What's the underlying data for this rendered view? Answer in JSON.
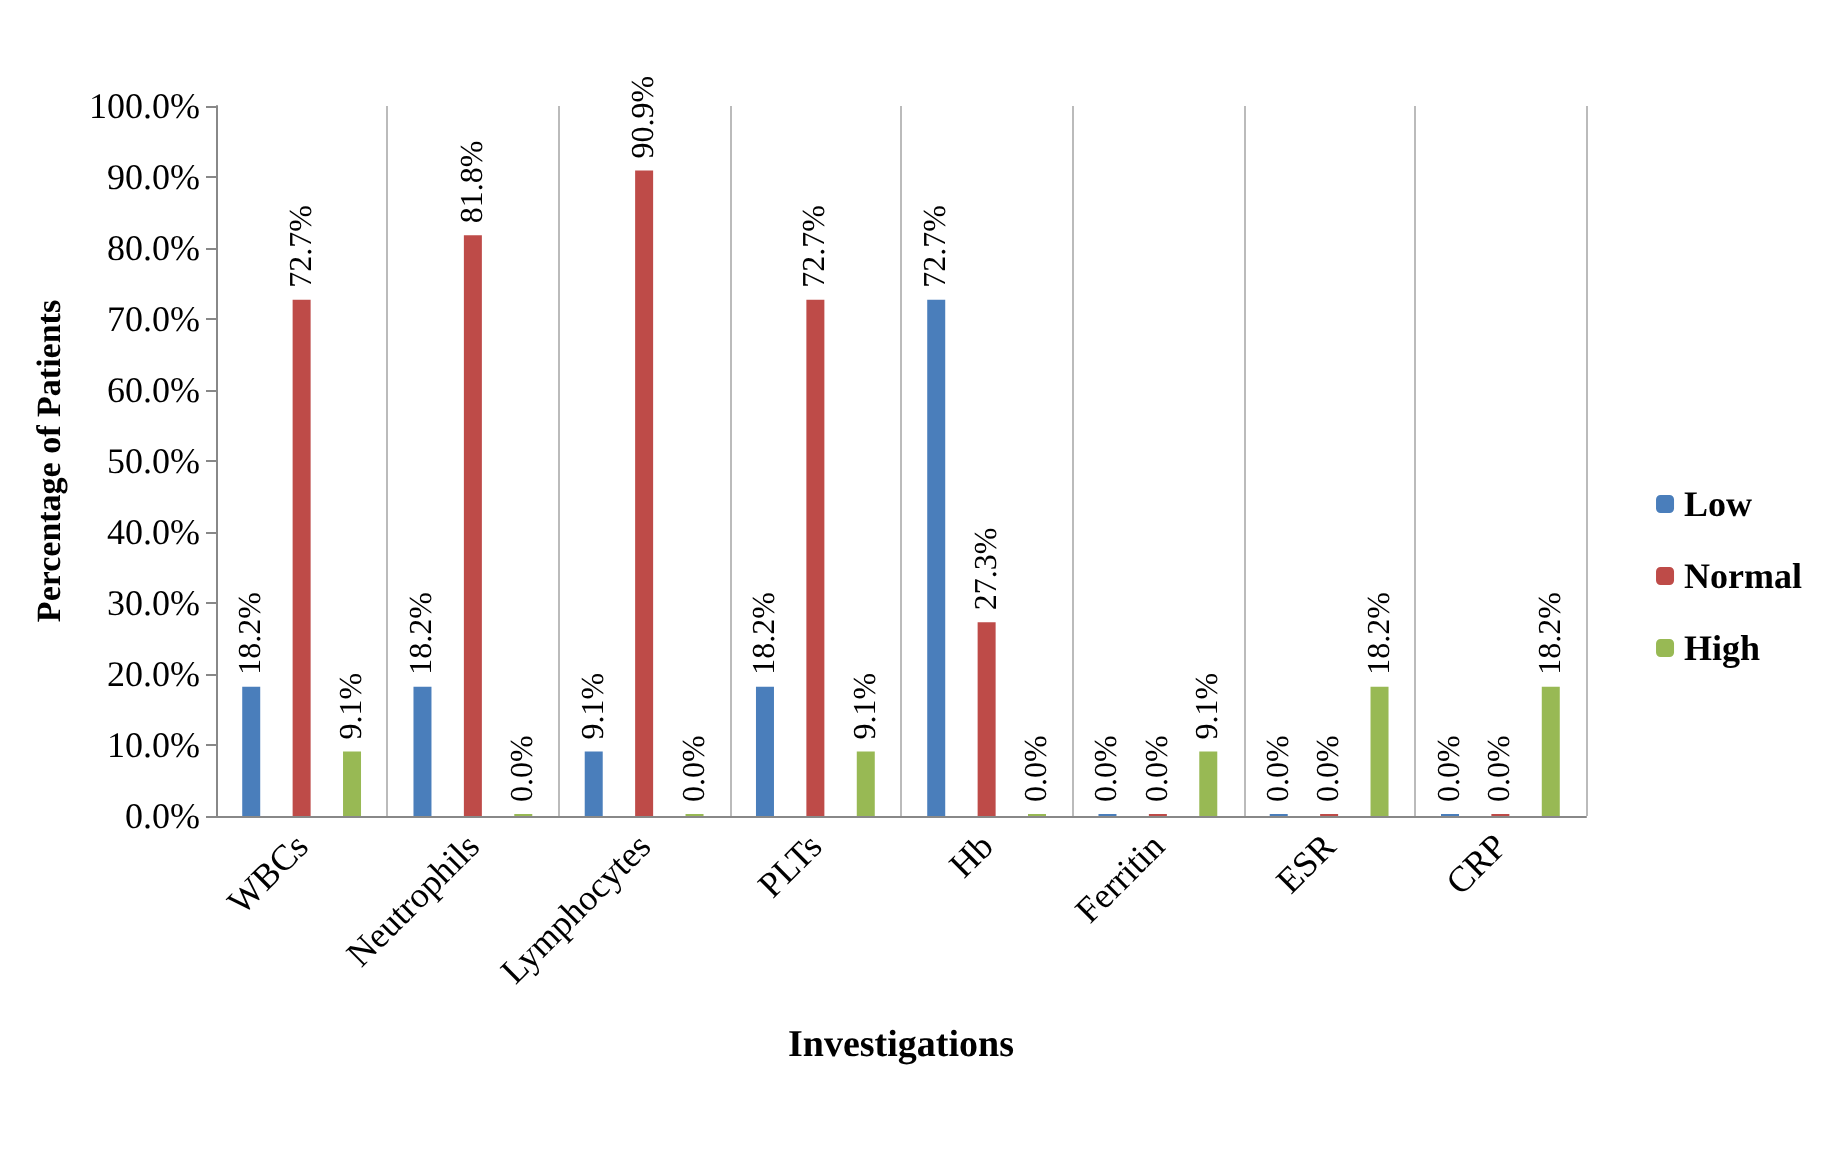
{
  "chart_data": {
    "type": "bar",
    "xlabel": "Investigations",
    "ylabel": "Percentage of Patients",
    "categories": [
      "WBCs",
      "Neutrophils",
      "Lymphocytes",
      "PLTs",
      "Hb",
      "Ferritin",
      "ESR",
      "CRP"
    ],
    "series": [
      {
        "name": "Low",
        "color": "#4a7ebb",
        "values": [
          18.2,
          18.2,
          9.1,
          18.2,
          72.7,
          0,
          0,
          0
        ],
        "value_labels": [
          "18.2%",
          "18.2%",
          "9.1%",
          "18.2%",
          "72.7%",
          "0.0%",
          "0.0%",
          "0.0%"
        ]
      },
      {
        "name": "Normal",
        "color": "#be4b48",
        "values": [
          72.7,
          81.8,
          90.9,
          72.7,
          27.3,
          0,
          0,
          0
        ],
        "value_labels": [
          "72.7%",
          "81.8%",
          "90.9%",
          "72.7%",
          "27.3%",
          "0.0%",
          "0.0%",
          "0.0%"
        ]
      },
      {
        "name": "High",
        "color": "#98b954",
        "values": [
          9.1,
          0,
          0,
          9.1,
          0,
          9.1,
          18.2,
          18.2
        ],
        "value_labels": [
          "9.1%",
          "0.0%",
          "0.0%",
          "9.1%",
          "0.0%",
          "9.1%",
          "18.2%",
          "18.2%"
        ]
      }
    ],
    "ylim": [
      0,
      100
    ],
    "yticks": [
      {
        "value": 0,
        "label": "0.0%"
      },
      {
        "value": 10,
        "label": "10.0%"
      },
      {
        "value": 20,
        "label": "20.0%"
      },
      {
        "value": 30,
        "label": "30.0%"
      },
      {
        "value": 40,
        "label": "40.0%"
      },
      {
        "value": 50,
        "label": "50.0%"
      },
      {
        "value": 60,
        "label": "60.0%"
      },
      {
        "value": 70,
        "label": "70.0%"
      },
      {
        "value": 80,
        "label": "80.0%"
      },
      {
        "value": 90,
        "label": "90.0%"
      },
      {
        "value": 100,
        "label": "100.0%"
      }
    ],
    "grid": "x",
    "legend": "right"
  }
}
